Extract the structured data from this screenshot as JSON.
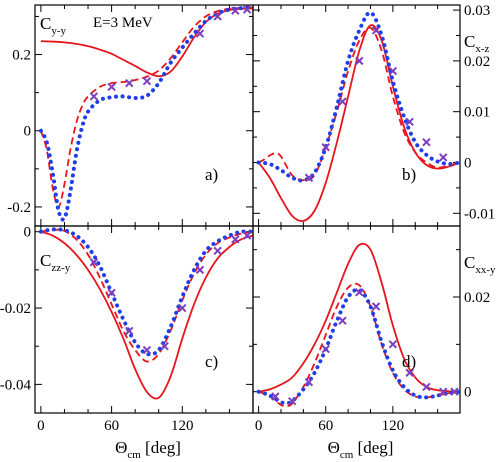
{
  "chart_data": [
    {
      "type": "line",
      "panel_label": "a)",
      "annotation": "E=3 MeV",
      "ylabel": "C",
      "ylabel_sub": "y-y",
      "xlabel": "",
      "xlim": [
        -5,
        180
      ],
      "ylim": [
        -0.25,
        0.33
      ],
      "xticks": [
        0,
        60,
        120
      ],
      "yticks": [
        0.2,
        0,
        -0.2
      ],
      "ytick_labels": [
        "0.2",
        "0",
        "-0.2"
      ],
      "series": [
        {
          "style": "solid",
          "color": "#e8141c",
          "x": [
            0,
            10,
            20,
            30,
            40,
            50,
            60,
            70,
            80,
            90,
            100,
            110,
            120,
            130,
            140,
            150,
            160,
            170,
            180
          ],
          "y": [
            0.235,
            0.234,
            0.232,
            0.228,
            0.222,
            0.213,
            0.202,
            0.186,
            0.17,
            0.153,
            0.143,
            0.155,
            0.195,
            0.245,
            0.285,
            0.307,
            0.317,
            0.32,
            0.321
          ]
        },
        {
          "style": "dashed",
          "color": "#e8141c",
          "x": [
            0,
            5,
            10,
            15,
            20,
            25,
            30,
            35,
            40,
            50,
            60,
            70,
            80,
            90,
            100,
            110,
            120,
            130,
            140,
            150,
            160,
            170,
            180
          ],
          "y": [
            0,
            -0.05,
            -0.15,
            -0.2,
            -0.14,
            -0.05,
            0.02,
            0.065,
            0.09,
            0.115,
            0.125,
            0.128,
            0.133,
            0.142,
            0.158,
            0.19,
            0.232,
            0.273,
            0.3,
            0.314,
            0.32,
            0.322,
            0.323
          ]
        },
        {
          "style": "dotted",
          "color": "#1f3ee8",
          "x": [
            0,
            5,
            10,
            15,
            20,
            25,
            30,
            35,
            40,
            50,
            60,
            70,
            80,
            90,
            100,
            110,
            120,
            130,
            140,
            150,
            160,
            170,
            180
          ],
          "y": [
            0,
            -0.03,
            -0.11,
            -0.21,
            -0.23,
            -0.16,
            -0.06,
            0.01,
            0.05,
            0.08,
            0.088,
            0.09,
            0.086,
            0.092,
            0.125,
            0.178,
            0.218,
            0.255,
            0.288,
            0.308,
            0.318,
            0.322,
            0.324
          ]
        },
        {
          "style": "marker",
          "color": "#7b3fbf",
          "x": [
            45,
            60,
            75,
            90,
            135,
            150,
            165,
            175
          ],
          "y": [
            0.09,
            0.115,
            0.125,
            0.13,
            0.255,
            0.3,
            0.315,
            0.318
          ]
        }
      ]
    },
    {
      "type": "line",
      "panel_label": "b)",
      "annotation": "",
      "ylabel": "C",
      "ylabel_sub": "x-z",
      "xlabel": "",
      "xlim": [
        -5,
        180
      ],
      "ylim": [
        -0.0125,
        0.031
      ],
      "xticks": [
        0,
        60,
        120
      ],
      "yticks": [
        0.03,
        0.02,
        0.01,
        0,
        -0.01
      ],
      "ytick_labels": [
        "0.03",
        "0.02",
        "0.01",
        "0",
        "-0.01"
      ],
      "series": [
        {
          "style": "solid",
          "color": "#e8141c",
          "x": [
            0,
            10,
            20,
            30,
            40,
            50,
            60,
            70,
            80,
            90,
            100,
            110,
            120,
            130,
            140,
            150,
            160,
            170,
            180
          ],
          "y": [
            0,
            -0.003,
            -0.007,
            -0.0105,
            -0.0115,
            -0.0095,
            -0.004,
            0.004,
            0.013,
            0.022,
            0.027,
            0.024,
            0.015,
            0.007,
            0.002,
            -0.0005,
            -0.0012,
            -0.0008,
            0
          ]
        },
        {
          "style": "dashed",
          "color": "#e8141c",
          "x": [
            0,
            5,
            10,
            15,
            20,
            30,
            40,
            50,
            60,
            70,
            80,
            90,
            100,
            110,
            120,
            130,
            140,
            150,
            160,
            170,
            180
          ],
          "y": [
            0,
            0.0006,
            0.0014,
            0.0018,
            0.0012,
            -0.0025,
            -0.0035,
            -0.0025,
            0.003,
            0.01,
            0.018,
            0.024,
            0.0265,
            0.022,
            0.013,
            0.006,
            0.002,
            0,
            -0.001,
            -0.0006,
            0
          ]
        },
        {
          "style": "dotted",
          "color": "#1f3ee8",
          "x": [
            0,
            10,
            20,
            30,
            40,
            50,
            60,
            70,
            80,
            90,
            100,
            110,
            120,
            130,
            140,
            150,
            160,
            170,
            180
          ],
          "y": [
            0,
            -0.0003,
            -0.0015,
            -0.003,
            -0.0035,
            -0.002,
            0.003,
            0.011,
            0.02,
            0.026,
            0.0295,
            0.025,
            0.016,
            0.009,
            0.004,
            0.0015,
            0.0002,
            -0.0003,
            0
          ]
        },
        {
          "style": "marker",
          "color": "#7b3fbf",
          "x": [
            45,
            60,
            75,
            90,
            105,
            120,
            135,
            150,
            165
          ],
          "y": [
            -0.003,
            0.003,
            0.012,
            0.02,
            0.026,
            0.018,
            0.008,
            0.004,
            0.001
          ]
        }
      ]
    },
    {
      "type": "line",
      "panel_label": "c)",
      "annotation": "",
      "ylabel": "C",
      "ylabel_sub": "zz-y",
      "xlabel": "Θ",
      "xlabel_sub": "cm",
      "xlabel_unit": "[deg]",
      "xlim": [
        -5,
        180
      ],
      "ylim": [
        -0.0475,
        0.0015
      ],
      "xticks": [
        0,
        60,
        120
      ],
      "xtick_labels": [
        "0",
        "60",
        "120"
      ],
      "yticks": [
        0,
        -0.02,
        -0.04
      ],
      "ytick_labels": [
        "0",
        "-0.02",
        "-0.04"
      ],
      "series": [
        {
          "style": "solid",
          "color": "#e8141c",
          "x": [
            0,
            10,
            20,
            30,
            40,
            50,
            60,
            70,
            80,
            90,
            100,
            110,
            120,
            130,
            140,
            150,
            160,
            170,
            180
          ],
          "y": [
            0,
            -0.001,
            -0.003,
            -0.006,
            -0.01,
            -0.015,
            -0.021,
            -0.028,
            -0.036,
            -0.042,
            -0.0435,
            -0.038,
            -0.028,
            -0.019,
            -0.012,
            -0.007,
            -0.004,
            -0.002,
            -0.001
          ]
        },
        {
          "style": "dashed",
          "color": "#e8141c",
          "x": [
            0,
            10,
            20,
            30,
            40,
            50,
            60,
            70,
            80,
            90,
            100,
            110,
            120,
            130,
            140,
            150,
            160,
            170,
            180
          ],
          "y": [
            0,
            0.0005,
            0.0002,
            -0.002,
            -0.006,
            -0.012,
            -0.019,
            -0.026,
            -0.031,
            -0.034,
            -0.032,
            -0.026,
            -0.018,
            -0.011,
            -0.006,
            -0.003,
            -0.0015,
            -0.0005,
            0
          ]
        },
        {
          "style": "dotted",
          "color": "#1f3ee8",
          "x": [
            0,
            10,
            20,
            30,
            40,
            50,
            60,
            70,
            80,
            90,
            100,
            110,
            120,
            130,
            140,
            150,
            160,
            170,
            180
          ],
          "y": [
            0,
            0.0006,
            0.0004,
            -0.001,
            -0.004,
            -0.009,
            -0.016,
            -0.023,
            -0.029,
            -0.032,
            -0.031,
            -0.025,
            -0.017,
            -0.01,
            -0.005,
            -0.0025,
            -0.001,
            0,
            0
          ]
        },
        {
          "style": "marker",
          "color": "#7b3fbf",
          "x": [
            45,
            60,
            75,
            90,
            105,
            120,
            135,
            150,
            165,
            175
          ],
          "y": [
            -0.008,
            -0.016,
            -0.026,
            -0.031,
            -0.03,
            -0.02,
            -0.01,
            -0.005,
            -0.002,
            -0.001
          ]
        }
      ]
    },
    {
      "type": "line",
      "panel_label": "d)",
      "annotation": "",
      "ylabel": "C",
      "ylabel_sub": "xx-y",
      "xlabel": "Θ",
      "xlabel_sub": "cm",
      "xlabel_unit": "[deg]",
      "xlim": [
        -5,
        180
      ],
      "ylim": [
        -0.0045,
        0.035
      ],
      "xticks": [
        0,
        60,
        120
      ],
      "xtick_labels": [
        "0",
        "60",
        "120"
      ],
      "yticks": [
        0.02,
        0
      ],
      "ytick_labels": [
        "0.02",
        "0"
      ],
      "series": [
        {
          "style": "solid",
          "color": "#e8141c",
          "x": [
            0,
            10,
            20,
            30,
            40,
            50,
            60,
            70,
            80,
            90,
            100,
            110,
            120,
            130,
            140,
            150,
            160,
            170,
            180
          ],
          "y": [
            0,
            0.0005,
            0.0015,
            0.003,
            0.006,
            0.01,
            0.015,
            0.021,
            0.027,
            0.031,
            0.03,
            0.023,
            0.014,
            0.007,
            0.003,
            0.001,
            0.0003,
            0.0001,
            0
          ]
        },
        {
          "style": "dashed",
          "color": "#e8141c",
          "x": [
            0,
            10,
            20,
            25,
            30,
            40,
            50,
            60,
            70,
            80,
            90,
            100,
            110,
            120,
            130,
            140,
            150,
            160,
            170,
            180
          ],
          "y": [
            0,
            -0.001,
            -0.0028,
            -0.003,
            -0.0025,
            0.001,
            0.006,
            0.012,
            0.018,
            0.022,
            0.0225,
            0.018,
            0.01,
            0.004,
            0.0005,
            -0.001,
            -0.0012,
            -0.0008,
            -0.0003,
            0
          ]
        },
        {
          "style": "dotted",
          "color": "#1f3ee8",
          "x": [
            0,
            10,
            20,
            25,
            30,
            40,
            50,
            60,
            70,
            80,
            90,
            100,
            110,
            120,
            130,
            140,
            150,
            160,
            170,
            180
          ],
          "y": [
            0,
            -0.0008,
            -0.0022,
            -0.0024,
            -0.002,
            0.0005,
            0.004,
            0.009,
            0.015,
            0.02,
            0.0215,
            0.018,
            0.0105,
            0.0045,
            0.001,
            -0.0008,
            -0.0012,
            -0.0008,
            -0.0003,
            0
          ]
        },
        {
          "style": "marker",
          "color": "#7b3fbf",
          "x": [
            15,
            30,
            45,
            60,
            75,
            90,
            105,
            120,
            135,
            150,
            165,
            175
          ],
          "y": [
            -0.001,
            -0.002,
            0.002,
            0.009,
            0.015,
            0.021,
            0.018,
            0.01,
            0.004,
            0.001,
            0,
            0
          ]
        }
      ]
    }
  ]
}
